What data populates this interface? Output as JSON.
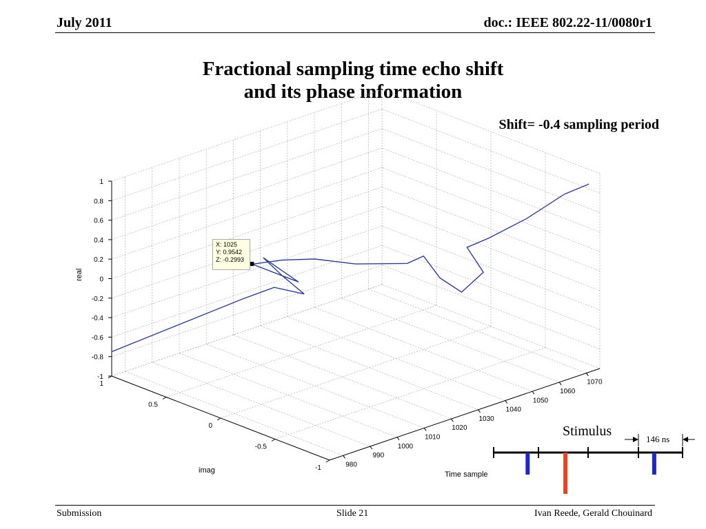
{
  "header": {
    "left": "July 2011",
    "right": "doc.: IEEE 802.22-11/0080r1"
  },
  "title": {
    "line1": "Fractional sampling time echo shift",
    "line2": "and its phase information"
  },
  "annotation": "Shift= -0.4 sampling period",
  "chart_data": {
    "type": "line",
    "dimensions": "3d",
    "xlabel": "Time sample",
    "ylabel": "imag",
    "zlabel": "real",
    "xlim": [
      975,
      1075
    ],
    "ylim": [
      -1,
      1
    ],
    "zlim": [
      -1,
      1
    ],
    "x_ticks": [
      "980",
      "990",
      "1000",
      "1010",
      "1020",
      "1030",
      "1040",
      "1050",
      "1060",
      "1070"
    ],
    "y_ticks": [
      "-1",
      "-0.5",
      "0",
      "0.5",
      "1"
    ],
    "z_ticks": [
      "-1",
      "-0.8",
      "-0.6",
      "-0.4",
      "-0.2",
      "0",
      "0.2",
      "0.4",
      "0.6",
      "0.8",
      "1"
    ],
    "grid": true,
    "line_color": "#2b3c9c",
    "series_points": [
      [
        975,
        1.0,
        -0.75
      ],
      [
        985,
        0.85,
        -0.6
      ],
      [
        995,
        0.7,
        -0.45
      ],
      [
        1005,
        0.55,
        -0.3
      ],
      [
        1015,
        0.5,
        -0.25
      ],
      [
        1018,
        0.3,
        -0.26
      ],
      [
        1020,
        0.55,
        -0.2
      ],
      [
        1023,
        0.8,
        -0.15
      ],
      [
        1024,
        0.5,
        -0.28
      ],
      [
        1025,
        0.95,
        -0.3
      ],
      [
        1028,
        0.75,
        -0.2
      ],
      [
        1030,
        0.5,
        -0.1
      ],
      [
        1033,
        0.2,
        -0.05
      ],
      [
        1036,
        -0.2,
        0.1
      ],
      [
        1038,
        -0.3,
        0.2
      ],
      [
        1040,
        -0.4,
        0.0
      ],
      [
        1042,
        -0.55,
        -0.1
      ],
      [
        1044,
        -0.7,
        0.15
      ],
      [
        1046,
        -0.5,
        0.3
      ],
      [
        1050,
        -0.6,
        0.4
      ],
      [
        1060,
        -0.7,
        0.55
      ],
      [
        1070,
        -0.8,
        0.75
      ],
      [
        1075,
        -0.9,
        0.85
      ]
    ],
    "datatip": {
      "x": "X: 1025",
      "y": "Y: 0.9542",
      "z": "Z: -0.2993"
    }
  },
  "stimulus": {
    "label": "Stimulus",
    "interval_label": "146 ns",
    "colors": {
      "blue": "#1f27c8",
      "red": "#e8421e"
    },
    "pulses": [
      {
        "color": "blue",
        "pos": 0.18
      },
      {
        "color": "red",
        "pos": 0.38
      },
      {
        "color": "blue",
        "pos": 0.85
      }
    ]
  },
  "footer": {
    "left": "Submission",
    "center": "Slide 21",
    "right": "Ivan Reede, Gerald Chouinard"
  }
}
